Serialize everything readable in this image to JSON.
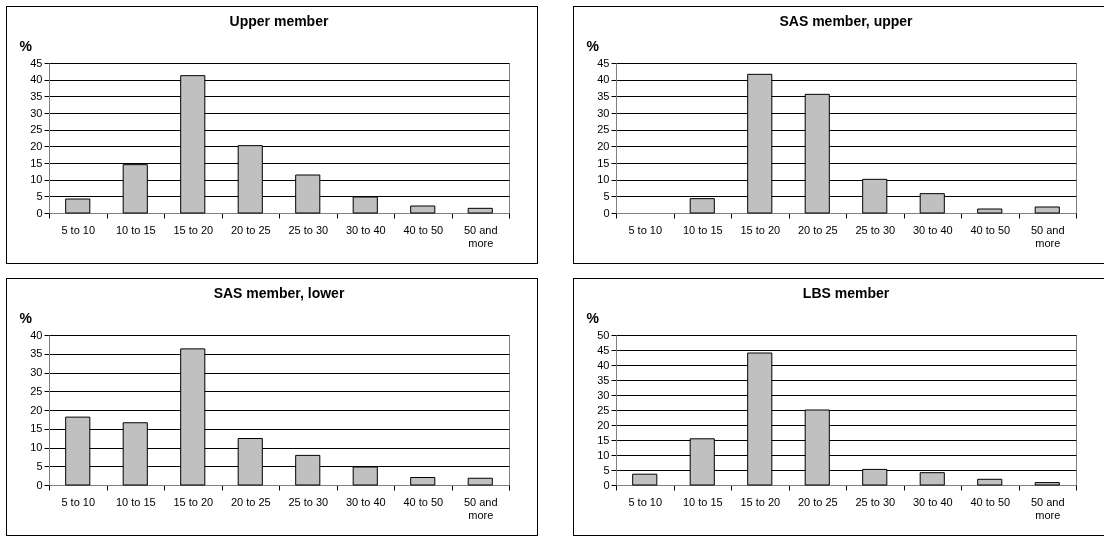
{
  "chart_data": [
    {
      "type": "bar",
      "title": "Upper member",
      "ylabel": "%",
      "categories": [
        "5 to 10",
        "10 to 15",
        "15 to 20",
        "20 to 25",
        "25 to 30",
        "30 to 40",
        "40 to 50",
        "50 and more"
      ],
      "values": [
        4.2,
        14.5,
        41.2,
        20.2,
        11.4,
        4.8,
        2.1,
        1.4
      ],
      "color": "#c0c0c0",
      "ylim": [
        0,
        45
      ],
      "yticks": [
        0,
        5,
        10,
        15,
        20,
        25,
        30,
        35,
        40,
        45
      ],
      "grid": "y"
    },
    {
      "type": "bar",
      "title": "SAS member, upper",
      "ylabel": "%",
      "categories": [
        "5 to 10",
        "10 to 15",
        "15 to 20",
        "20 to 25",
        "25 to 30",
        "30 to 40",
        "40 to 50",
        "50 and more"
      ],
      "values": [
        0,
        4.3,
        41.6,
        35.6,
        10.1,
        5.8,
        1.2,
        1.8
      ],
      "color": "#c0c0c0",
      "ylim": [
        0,
        45
      ],
      "yticks": [
        0,
        5,
        10,
        15,
        20,
        25,
        30,
        35,
        40,
        45
      ],
      "grid": "y"
    },
    {
      "type": "bar",
      "title": "SAS member, lower",
      "ylabel": "%",
      "categories": [
        "5 to 10",
        "10 to 15",
        "15 to 20",
        "20 to 25",
        "25 to 30",
        "30 to 40",
        "40 to 50",
        "50 and more"
      ],
      "values": [
        18.1,
        16.6,
        36.3,
        12.4,
        7.9,
        4.8,
        2.0,
        1.8
      ],
      "color": "#c0c0c0",
      "ylim": [
        0,
        40
      ],
      "yticks": [
        0,
        5,
        10,
        15,
        20,
        25,
        30,
        35,
        40
      ],
      "grid": "y"
    },
    {
      "type": "bar",
      "title": "LBS member",
      "ylabel": "%",
      "categories": [
        "5 to 10",
        "10 to 15",
        "15 to 20",
        "20 to 25",
        "25 to 30",
        "30 to 40",
        "40 to 50",
        "50 and more"
      ],
      "values": [
        3.6,
        15.4,
        44.0,
        25.0,
        5.2,
        4.1,
        1.9,
        0.8
      ],
      "color": "#c0c0c0",
      "ylim": [
        0,
        50
      ],
      "yticks": [
        0,
        5,
        10,
        15,
        20,
        25,
        30,
        35,
        40,
        45,
        50
      ],
      "grid": "y"
    }
  ]
}
